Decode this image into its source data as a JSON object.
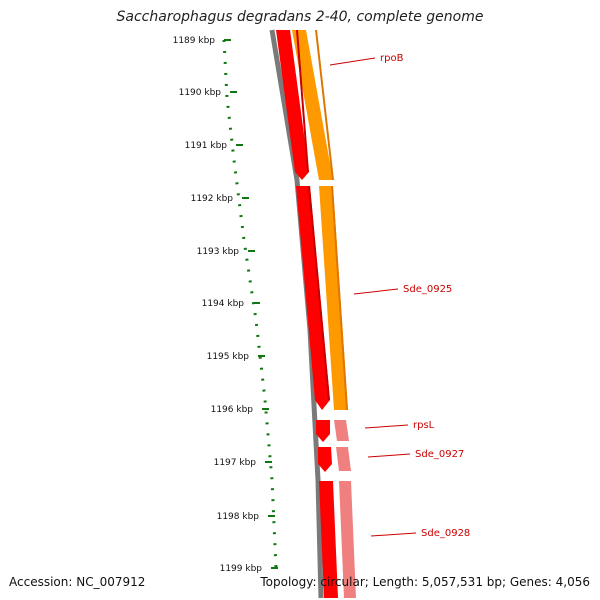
{
  "title": "Saccharophagus degradans 2-40, complete genome",
  "footer": {
    "accession": "Accession: NC_007912",
    "summary": "Topology: circular; Length: 5,057,531 bp; Genes: 4,056"
  },
  "ruler": {
    "ticks": [
      "1189 kbp",
      "1190 kbp",
      "1191 kbp",
      "1192 kbp",
      "1193 kbp",
      "1194 kbp",
      "1195 kbp",
      "1196 kbp",
      "1197 kbp",
      "1198 kbp",
      "1199 kbp"
    ]
  },
  "genes": [
    {
      "label": "rpoB"
    },
    {
      "label": "Sde_0925"
    },
    {
      "label": "rpsL"
    },
    {
      "label": "Sde_0927"
    },
    {
      "label": "Sde_0928"
    }
  ],
  "colors": {
    "backbone": "#7a7a7a",
    "cds": "#ff0000",
    "feature_orange": "#ff9900",
    "feature_pink": "#f08080",
    "ruler": "#117711",
    "label": "#cc0000"
  }
}
